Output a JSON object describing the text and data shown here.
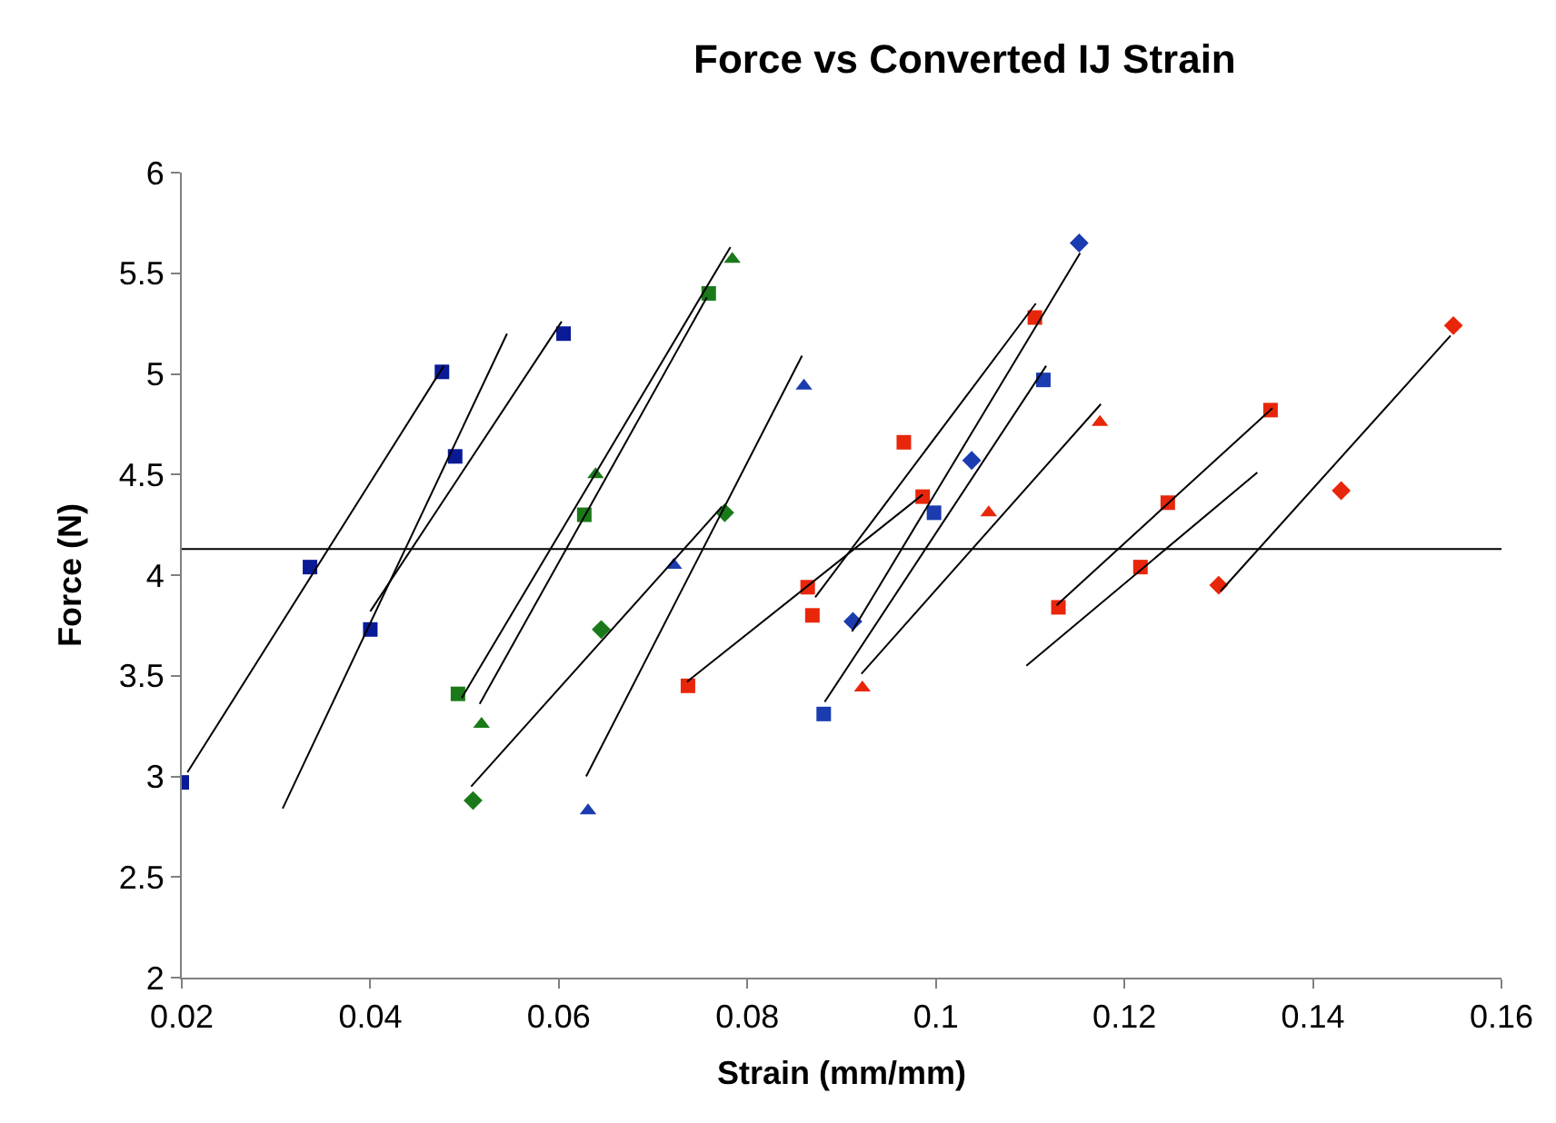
{
  "chart_data": {
    "type": "scatter",
    "title": "Force vs Converted IJ Strain",
    "xlabel": "Strain (mm/mm)",
    "ylabel": "Force (N)",
    "xlim": [
      0.02,
      0.16
    ],
    "xticks": [
      0.02,
      0.04,
      0.06,
      0.08,
      0.1,
      0.12,
      0.14,
      0.16
    ],
    "ylim": [
      2,
      6
    ],
    "yticks": [
      2,
      2.5,
      3,
      3.5,
      4,
      4.5,
      5,
      5.5,
      6
    ],
    "ref_lines": [
      {
        "axis": "y",
        "value": 4.13,
        "color": "#000000"
      }
    ],
    "series": [
      {
        "marker": "square",
        "color": "#0a1a96",
        "x": [
          0.02,
          0.0336,
          0.0476,
          0.04,
          0.049,
          0.0605
        ],
        "values": [
          2.97,
          4.04,
          5.01,
          3.73,
          4.59,
          5.2
        ]
      },
      {
        "marker": "square",
        "color": "#1a7a1a",
        "x": [
          0.0493,
          0.0627,
          0.0759
        ],
        "values": [
          3.41,
          4.3,
          5.4
        ]
      },
      {
        "marker": "triangle",
        "color": "#1a7a1a",
        "x": [
          0.0518,
          0.0639,
          0.0784
        ],
        "values": [
          3.26,
          4.5,
          5.57
        ]
      },
      {
        "marker": "diamond",
        "color": "#1a7a1a",
        "x": [
          0.0509,
          0.0645,
          0.0776
        ],
        "values": [
          2.88,
          3.73,
          4.31
        ]
      },
      {
        "marker": "triangle",
        "color": "#1a3cb0",
        "x": [
          0.0631,
          0.0722,
          0.086
        ],
        "values": [
          2.83,
          4.05,
          4.94
        ]
      },
      {
        "marker": "diamond",
        "color": "#1a3cb0",
        "x": [
          0.0912,
          0.1038,
          0.1152
        ],
        "values": [
          3.77,
          4.57,
          5.65
        ]
      },
      {
        "marker": "square",
        "color": "#1a3cb0",
        "x": [
          0.0881,
          0.0998,
          0.1114
        ],
        "values": [
          3.31,
          4.31,
          4.97
        ]
      },
      {
        "marker": "square",
        "color": "#e8260a",
        "x": [
          0.0737,
          0.0864,
          0.0986,
          0.0966,
          0.0869,
          0.1105,
          0.113,
          0.1246,
          0.1355,
          0.1217
        ],
        "values": [
          3.45,
          3.94,
          4.39,
          4.66,
          3.8,
          5.28,
          3.84,
          4.36,
          4.82,
          4.04
        ]
      },
      {
        "marker": "triangle",
        "color": "#e8260a",
        "x": [
          0.0922,
          0.1056,
          0.1174
        ],
        "values": [
          3.44,
          4.31,
          4.76
        ]
      },
      {
        "marker": "diamond",
        "color": "#e8260a",
        "x": [
          0.13,
          0.143,
          0.1549
        ],
        "values": [
          3.95,
          4.42,
          5.24
        ]
      },
      {
        "type": "line",
        "color": "#000000",
        "x": [
          0.0206,
          0.0478
        ],
        "values": [
          3.02,
          5.04
        ]
      },
      {
        "type": "line",
        "color": "#000000",
        "x": [
          0.0307,
          0.0545
        ],
        "values": [
          2.84,
          5.2
        ]
      },
      {
        "type": "line",
        "color": "#000000",
        "x": [
          0.04,
          0.0603
        ],
        "values": [
          3.82,
          5.26
        ]
      },
      {
        "type": "line",
        "color": "#000000",
        "x": [
          0.0497,
          0.0782
        ],
        "values": [
          3.39,
          5.63
        ]
      },
      {
        "type": "line",
        "color": "#000000",
        "x": [
          0.0516,
          0.0757
        ],
        "values": [
          3.36,
          5.38
        ]
      },
      {
        "type": "line",
        "color": "#000000",
        "x": [
          0.0507,
          0.0773
        ],
        "values": [
          2.95,
          4.34
        ]
      },
      {
        "type": "line",
        "color": "#000000",
        "x": [
          0.0629,
          0.0858
        ],
        "values": [
          3.0,
          5.09
        ]
      },
      {
        "type": "line",
        "color": "#000000",
        "x": [
          0.0736,
          0.0986
        ],
        "values": [
          3.47,
          4.4
        ]
      },
      {
        "type": "line",
        "color": "#000000",
        "x": [
          0.0872,
          0.1106
        ],
        "values": [
          3.89,
          5.35
        ]
      },
      {
        "type": "line",
        "color": "#000000",
        "x": [
          0.0911,
          0.1153
        ],
        "values": [
          3.72,
          5.6
        ]
      },
      {
        "type": "line",
        "color": "#000000",
        "x": [
          0.0882,
          0.1117
        ],
        "values": [
          3.37,
          5.04
        ]
      },
      {
        "type": "line",
        "color": "#000000",
        "x": [
          0.0921,
          0.1175
        ],
        "values": [
          3.51,
          4.85
        ]
      },
      {
        "type": "line",
        "color": "#000000",
        "x": [
          0.1128,
          0.1357
        ],
        "values": [
          3.85,
          4.83
        ]
      },
      {
        "type": "line",
        "color": "#000000",
        "x": [
          0.1096,
          0.1341
        ],
        "values": [
          3.55,
          4.51
        ]
      },
      {
        "type": "line",
        "color": "#000000",
        "x": [
          0.1302,
          0.1546
        ],
        "values": [
          3.92,
          5.19
        ]
      }
    ]
  }
}
